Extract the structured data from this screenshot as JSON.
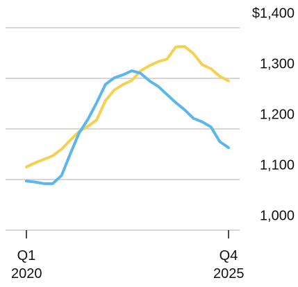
{
  "chart_data": {
    "type": "line",
    "categories": [
      "Q1 2020",
      null,
      null,
      null,
      null,
      null,
      null,
      null,
      null,
      null,
      null,
      null,
      null,
      null,
      null,
      null,
      null,
      null,
      null,
      null,
      null,
      null,
      null,
      "Q4 2025"
    ],
    "series": [
      {
        "color": "#f4d150",
        "values": [
          1125,
          1133,
          1140,
          1147,
          1160,
          1178,
          1195,
          1205,
          1218,
          1256,
          1277,
          1288,
          1296,
          1315,
          1325,
          1333,
          1338,
          1362,
          1363,
          1349,
          1327,
          1319,
          1304,
          1295
        ]
      },
      {
        "color": "#5bb6ec",
        "values": [
          1097,
          1095,
          1092,
          1092,
          1108,
          1151,
          1192,
          1219,
          1252,
          1288,
          1301,
          1307,
          1315,
          1310,
          1295,
          1284,
          1268,
          1252,
          1238,
          1221,
          1214,
          1204,
          1175,
          1163
        ]
      }
    ],
    "ylim": [
      1000,
      1400
    ],
    "yticks": [
      {
        "value": 1000,
        "label": "1,000"
      },
      {
        "value": 1100,
        "label": "1,100"
      },
      {
        "value": 1200,
        "label": "1,200"
      },
      {
        "value": 1300,
        "label": "1,300"
      },
      {
        "value": 1400,
        "label": "$1,400"
      }
    ],
    "grid": true
  }
}
